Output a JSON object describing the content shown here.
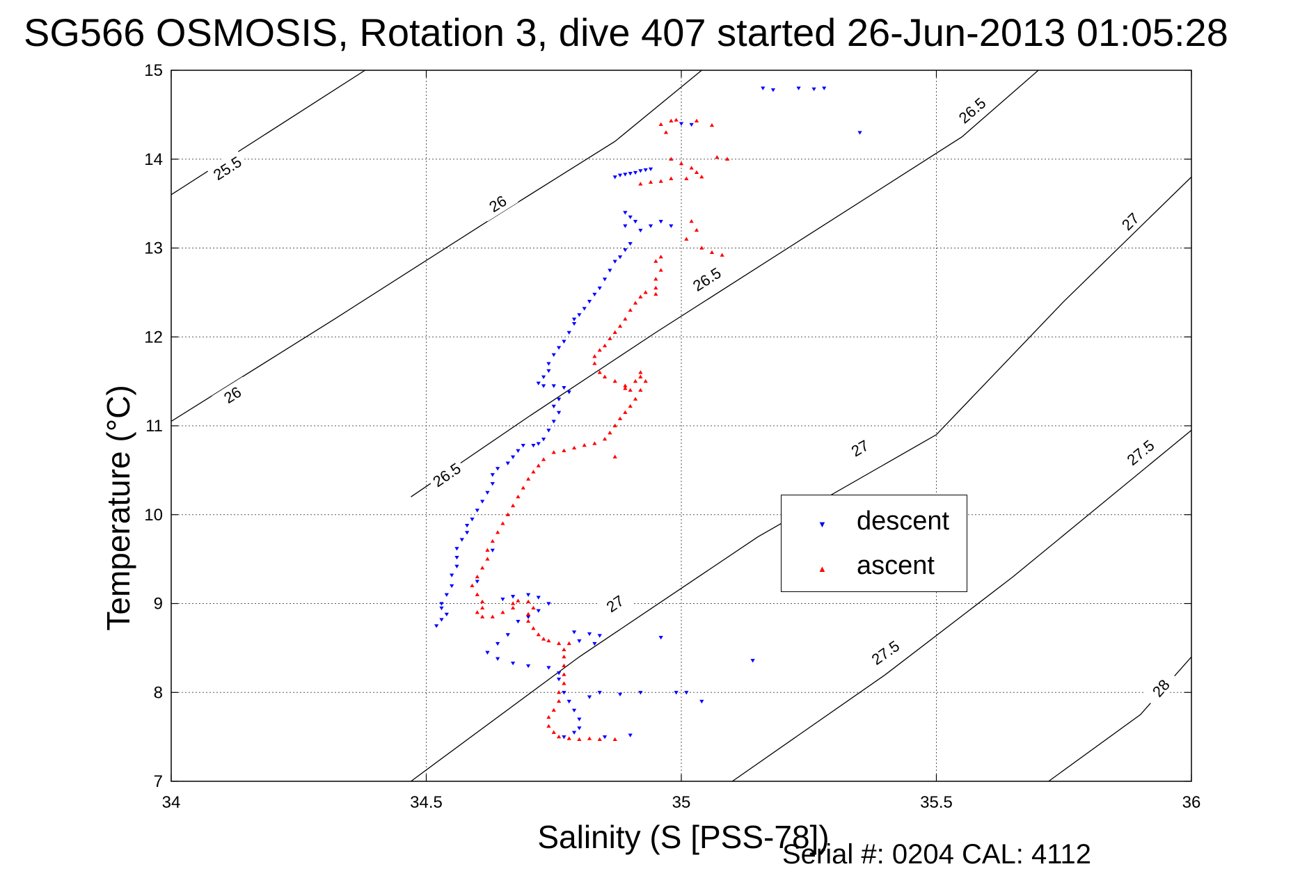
{
  "title": "SG566 OSMOSIS, Rotation 3, dive 407 started 26-Jun-2013 01:05:28",
  "serial_label": "Serial #: 0204  CAL: 4112",
  "chart_data": {
    "type": "scatter",
    "title": "SG566 OSMOSIS, Rotation 3, dive 407 started 26-Jun-2013 01:05:28",
    "xlabel": "Salinity (S [PSS-78])",
    "ylabel": "Temperature (°C)",
    "xlim": [
      34,
      36
    ],
    "ylim": [
      7,
      15
    ],
    "xticks": [
      34,
      34.5,
      35,
      35.5,
      36
    ],
    "yticks": [
      7,
      8,
      9,
      10,
      11,
      12,
      13,
      14,
      15
    ],
    "xtick_labels": [
      "34",
      "34.5",
      "35",
      "35.5",
      "36"
    ],
    "ytick_labels": [
      "7",
      "8",
      "9",
      "10",
      "11",
      "12",
      "13",
      "14",
      "15"
    ],
    "grid": true,
    "legend": {
      "placement": "center-right",
      "entries": [
        "descent",
        "ascent"
      ]
    },
    "contours": [
      {
        "label": "25.5",
        "points": [
          [
            34.0,
            13.6
          ],
          [
            34.38,
            15.0
          ]
        ],
        "label_at": [
          [
            34.11,
            13.9
          ]
        ]
      },
      {
        "label": "26",
        "points": [
          [
            34.0,
            11.05
          ],
          [
            34.32,
            12.2
          ],
          [
            34.62,
            13.3
          ],
          [
            34.87,
            14.2
          ],
          [
            35.04,
            15.0
          ]
        ],
        "label_at": [
          [
            34.12,
            11.35
          ],
          [
            34.64,
            13.5
          ]
        ]
      },
      {
        "label": "26.5",
        "points": [
          [
            34.47,
            10.2
          ],
          [
            34.7,
            11.1
          ],
          [
            34.95,
            12.05
          ],
          [
            35.25,
            13.15
          ],
          [
            35.55,
            14.25
          ],
          [
            35.7,
            15.0
          ]
        ],
        "label_at": [
          [
            34.54,
            10.45
          ],
          [
            35.05,
            12.65
          ],
          [
            35.57,
            14.55
          ]
        ]
      },
      {
        "label": "27",
        "points": [
          [
            34.47,
            7.0
          ],
          [
            34.8,
            8.4
          ],
          [
            35.15,
            9.75
          ],
          [
            35.5,
            10.9
          ],
          [
            35.75,
            12.4
          ],
          [
            36.0,
            13.8
          ]
        ],
        "label_at": [
          [
            34.87,
            9.0
          ],
          [
            35.35,
            10.75
          ],
          [
            35.88,
            13.3
          ]
        ]
      },
      {
        "label": "27.5",
        "points": [
          [
            35.1,
            7.0
          ],
          [
            35.4,
            8.2
          ],
          [
            35.65,
            9.3
          ],
          [
            36.0,
            10.95
          ]
        ],
        "label_at": [
          [
            35.4,
            8.45
          ],
          [
            35.9,
            10.7
          ]
        ]
      },
      {
        "label": "28",
        "points": [
          [
            35.72,
            7.0
          ],
          [
            35.9,
            7.75
          ],
          [
            36.0,
            8.4
          ]
        ],
        "label_at": [
          [
            35.94,
            8.05
          ]
        ]
      }
    ],
    "series": [
      {
        "name": "descent",
        "color": "#0000ff",
        "marker": "triangle-down",
        "points": [
          [
            35.16,
            14.8
          ],
          [
            35.18,
            14.78
          ],
          [
            35.23,
            14.8
          ],
          [
            35.26,
            14.79
          ],
          [
            35.28,
            14.8
          ],
          [
            35.35,
            14.3
          ],
          [
            35.0,
            14.4
          ],
          [
            35.02,
            14.39
          ],
          [
            34.87,
            13.8
          ],
          [
            34.88,
            13.82
          ],
          [
            34.89,
            13.83
          ],
          [
            34.9,
            13.84
          ],
          [
            34.91,
            13.85
          ],
          [
            34.92,
            13.87
          ],
          [
            34.93,
            13.88
          ],
          [
            34.94,
            13.89
          ],
          [
            34.89,
            13.4
          ],
          [
            34.9,
            13.35
          ],
          [
            34.91,
            13.3
          ],
          [
            34.89,
            13.25
          ],
          [
            34.92,
            13.2
          ],
          [
            34.94,
            13.25
          ],
          [
            34.96,
            13.3
          ],
          [
            34.98,
            13.25
          ],
          [
            34.9,
            13.05
          ],
          [
            34.89,
            12.98
          ],
          [
            34.88,
            12.9
          ],
          [
            34.87,
            12.85
          ],
          [
            34.86,
            12.75
          ],
          [
            34.85,
            12.65
          ],
          [
            34.84,
            12.55
          ],
          [
            34.83,
            12.48
          ],
          [
            34.82,
            12.4
          ],
          [
            34.81,
            12.32
          ],
          [
            34.8,
            12.25
          ],
          [
            34.79,
            12.2
          ],
          [
            34.79,
            12.15
          ],
          [
            34.78,
            12.05
          ],
          [
            34.77,
            11.95
          ],
          [
            34.76,
            11.88
          ],
          [
            34.75,
            11.8
          ],
          [
            34.74,
            11.7
          ],
          [
            34.74,
            11.62
          ],
          [
            34.73,
            11.55
          ],
          [
            34.72,
            11.48
          ],
          [
            34.73,
            11.45
          ],
          [
            34.75,
            11.45
          ],
          [
            34.77,
            11.43
          ],
          [
            34.78,
            11.38
          ],
          [
            34.76,
            11.3
          ],
          [
            34.75,
            11.22
          ],
          [
            34.76,
            11.15
          ],
          [
            34.75,
            11.05
          ],
          [
            34.74,
            10.95
          ],
          [
            34.73,
            10.85
          ],
          [
            34.72,
            10.8
          ],
          [
            34.71,
            10.78
          ],
          [
            34.69,
            10.78
          ],
          [
            34.68,
            10.72
          ],
          [
            34.67,
            10.65
          ],
          [
            34.66,
            10.58
          ],
          [
            34.64,
            10.52
          ],
          [
            34.63,
            10.45
          ],
          [
            34.63,
            10.35
          ],
          [
            34.62,
            10.25
          ],
          [
            34.61,
            10.15
          ],
          [
            34.6,
            10.05
          ],
          [
            34.59,
            9.95
          ],
          [
            34.58,
            9.88
          ],
          [
            34.58,
            9.8
          ],
          [
            34.57,
            9.72
          ],
          [
            34.56,
            9.62
          ],
          [
            34.56,
            9.52
          ],
          [
            34.56,
            9.42
          ],
          [
            34.55,
            9.32
          ],
          [
            34.55,
            9.2
          ],
          [
            34.54,
            9.1
          ],
          [
            34.53,
            9.0
          ],
          [
            34.53,
            8.95
          ],
          [
            34.54,
            8.88
          ],
          [
            34.53,
            8.82
          ],
          [
            34.52,
            8.75
          ],
          [
            34.6,
            9.25
          ],
          [
            34.63,
            9.6
          ],
          [
            34.65,
            9.05
          ],
          [
            34.67,
            9.08
          ],
          [
            34.7,
            9.1
          ],
          [
            34.72,
            9.07
          ],
          [
            34.74,
            9.0
          ],
          [
            34.72,
            8.92
          ],
          [
            34.7,
            8.85
          ],
          [
            34.68,
            8.8
          ],
          [
            34.66,
            8.65
          ],
          [
            34.64,
            8.55
          ],
          [
            34.62,
            8.45
          ],
          [
            34.64,
            8.38
          ],
          [
            34.67,
            8.33
          ],
          [
            34.7,
            8.3
          ],
          [
            34.74,
            8.28
          ],
          [
            34.76,
            8.22
          ],
          [
            34.79,
            8.68
          ],
          [
            34.82,
            8.66
          ],
          [
            34.84,
            8.64
          ],
          [
            34.8,
            8.58
          ],
          [
            34.83,
            8.55
          ],
          [
            34.76,
            8.15
          ],
          [
            34.77,
            8.0
          ],
          [
            34.78,
            7.9
          ],
          [
            34.79,
            7.8
          ],
          [
            34.8,
            7.7
          ],
          [
            34.8,
            7.6
          ],
          [
            34.79,
            7.55
          ],
          [
            34.77,
            7.5
          ],
          [
            34.82,
            7.95
          ],
          [
            34.84,
            8.0
          ],
          [
            34.88,
            7.98
          ],
          [
            34.92,
            8.0
          ],
          [
            34.96,
            8.62
          ],
          [
            34.99,
            8.0
          ],
          [
            35.01,
            8.0
          ],
          [
            35.04,
            7.9
          ],
          [
            35.14,
            8.36
          ],
          [
            34.85,
            7.5
          ],
          [
            34.9,
            7.52
          ]
        ]
      },
      {
        "name": "ascent",
        "color": "#ff0000",
        "marker": "triangle-up",
        "points": [
          [
            34.99,
            14.44
          ],
          [
            34.98,
            14.43
          ],
          [
            35.03,
            14.43
          ],
          [
            34.96,
            14.39
          ],
          [
            35.06,
            14.38
          ],
          [
            34.97,
            14.3
          ],
          [
            34.98,
            14.0
          ],
          [
            35.0,
            13.95
          ],
          [
            35.02,
            13.9
          ],
          [
            35.03,
            13.85
          ],
          [
            35.04,
            13.8
          ],
          [
            35.01,
            13.78
          ],
          [
            34.98,
            13.78
          ],
          [
            34.96,
            13.75
          ],
          [
            34.94,
            13.74
          ],
          [
            34.92,
            13.72
          ],
          [
            35.07,
            14.02
          ],
          [
            35.09,
            14.0
          ],
          [
            35.02,
            13.3
          ],
          [
            35.03,
            13.2
          ],
          [
            35.01,
            13.1
          ],
          [
            35.04,
            13.0
          ],
          [
            35.06,
            12.95
          ],
          [
            35.08,
            12.92
          ],
          [
            34.96,
            12.9
          ],
          [
            34.95,
            12.85
          ],
          [
            34.96,
            12.75
          ],
          [
            34.95,
            12.65
          ],
          [
            34.95,
            12.55
          ],
          [
            34.95,
            12.48
          ],
          [
            34.93,
            12.5
          ],
          [
            34.92,
            12.45
          ],
          [
            34.91,
            12.38
          ],
          [
            34.9,
            12.3
          ],
          [
            34.89,
            12.2
          ],
          [
            34.88,
            12.12
          ],
          [
            34.87,
            12.05
          ],
          [
            34.86,
            11.98
          ],
          [
            34.85,
            11.9
          ],
          [
            34.84,
            11.85
          ],
          [
            34.83,
            11.78
          ],
          [
            34.83,
            11.7
          ],
          [
            34.84,
            11.6
          ],
          [
            34.85,
            11.55
          ],
          [
            34.87,
            11.5
          ],
          [
            34.89,
            11.45
          ],
          [
            34.9,
            11.4
          ],
          [
            34.91,
            11.5
          ],
          [
            34.92,
            11.55
          ],
          [
            34.93,
            11.5
          ],
          [
            34.92,
            11.4
          ],
          [
            34.91,
            11.3
          ],
          [
            34.9,
            11.22
          ],
          [
            34.89,
            11.15
          ],
          [
            34.88,
            11.08
          ],
          [
            34.87,
            11.0
          ],
          [
            34.86,
            10.92
          ],
          [
            34.85,
            10.85
          ],
          [
            34.83,
            10.8
          ],
          [
            34.81,
            10.78
          ],
          [
            34.79,
            10.75
          ],
          [
            34.77,
            10.72
          ],
          [
            34.75,
            10.7
          ],
          [
            34.73,
            10.62
          ],
          [
            34.72,
            10.55
          ],
          [
            34.71,
            10.48
          ],
          [
            34.7,
            10.4
          ],
          [
            34.69,
            10.3
          ],
          [
            34.68,
            10.2
          ],
          [
            34.67,
            10.1
          ],
          [
            34.66,
            10.0
          ],
          [
            34.65,
            9.9
          ],
          [
            34.64,
            9.8
          ],
          [
            34.63,
            9.7
          ],
          [
            34.62,
            9.6
          ],
          [
            34.62,
            9.5
          ],
          [
            34.61,
            9.4
          ],
          [
            34.6,
            9.3
          ],
          [
            34.59,
            9.2
          ],
          [
            34.6,
            9.1
          ],
          [
            34.61,
            9.02
          ],
          [
            34.61,
            8.95
          ],
          [
            34.6,
            8.9
          ],
          [
            34.61,
            8.85
          ],
          [
            34.63,
            8.85
          ],
          [
            34.65,
            8.9
          ],
          [
            34.67,
            8.95
          ],
          [
            34.67,
            9.0
          ],
          [
            34.68,
            9.03
          ],
          [
            34.7,
            9.02
          ],
          [
            34.71,
            8.95
          ],
          [
            34.7,
            8.88
          ],
          [
            34.7,
            8.8
          ],
          [
            34.71,
            8.72
          ],
          [
            34.72,
            8.65
          ],
          [
            34.73,
            8.6
          ],
          [
            34.74,
            8.58
          ],
          [
            34.76,
            8.55
          ],
          [
            34.78,
            8.55
          ],
          [
            34.77,
            8.48
          ],
          [
            34.77,
            8.4
          ],
          [
            34.77,
            8.3
          ],
          [
            34.77,
            8.2
          ],
          [
            34.77,
            8.1
          ],
          [
            34.76,
            8.0
          ],
          [
            34.76,
            7.9
          ],
          [
            34.75,
            7.8
          ],
          [
            34.74,
            7.72
          ],
          [
            34.74,
            7.62
          ],
          [
            34.75,
            7.55
          ],
          [
            34.76,
            7.5
          ],
          [
            34.78,
            7.48
          ],
          [
            34.8,
            7.47
          ],
          [
            34.82,
            7.48
          ],
          [
            34.84,
            7.47
          ],
          [
            34.87,
            7.47
          ],
          [
            34.87,
            10.65
          ],
          [
            34.92,
            11.6
          ],
          [
            34.89,
            11.42
          ]
        ]
      }
    ]
  }
}
